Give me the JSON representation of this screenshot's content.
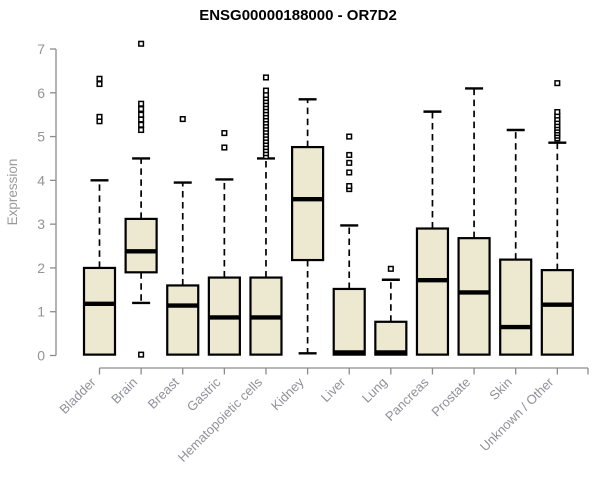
{
  "title": "ENSG00000188000 - OR7D2",
  "chart_data": {
    "type": "boxplot",
    "title": "ENSG00000188000 - OR7D2",
    "xlabel": "",
    "ylabel": "Expression",
    "ylim": [
      0,
      7
    ],
    "yticks": [
      0,
      1,
      2,
      3,
      4,
      5,
      6,
      7
    ],
    "grid": false,
    "legend": "none",
    "categories": [
      "Bladder",
      "Brain",
      "Breast",
      "Gastric",
      "Hematopoietic cells",
      "Kidney",
      "Liver",
      "Lung",
      "Pancreas",
      "Prostate",
      "Skin",
      "Unknown / Other"
    ],
    "boxes": [
      {
        "category": "Bladder",
        "whisker_low": null,
        "q1": 0.02,
        "median": 1.18,
        "q3": 2.0,
        "whisker_high": 4.0,
        "outliers": [
          5.35,
          5.45,
          6.2,
          6.32
        ]
      },
      {
        "category": "Brain",
        "whisker_low": 1.2,
        "q1": 1.9,
        "median": 2.38,
        "q3": 3.12,
        "whisker_high": 4.5,
        "outliers": [
          0.02,
          5.15,
          5.27,
          5.39,
          5.5,
          5.63,
          5.75,
          7.12
        ]
      },
      {
        "category": "Breast",
        "whisker_low": null,
        "q1": 0.02,
        "median": 1.14,
        "q3": 1.6,
        "whisker_high": 3.95,
        "outliers": [
          5.4
        ]
      },
      {
        "category": "Gastric",
        "whisker_low": null,
        "q1": 0.02,
        "median": 0.87,
        "q3": 1.78,
        "whisker_high": 4.02,
        "outliers": [
          4.75,
          5.08
        ]
      },
      {
        "category": "Hematopoietic cells",
        "whisker_low": null,
        "q1": 0.02,
        "median": 0.87,
        "q3": 1.78,
        "whisker_high": 4.5,
        "outliers": [
          4.55,
          4.62,
          4.69,
          4.76,
          4.83,
          4.9,
          4.97,
          5.04,
          5.11,
          5.18,
          5.25,
          5.32,
          5.39,
          5.46,
          5.53,
          5.6,
          5.67,
          5.74,
          5.81,
          5.88,
          5.95,
          6.05,
          6.35
        ]
      },
      {
        "category": "Kidney",
        "whisker_low": 0.05,
        "q1": 2.18,
        "median": 3.57,
        "q3": 4.76,
        "whisker_high": 5.85,
        "outliers": []
      },
      {
        "category": "Liver",
        "whisker_low": null,
        "q1": 0.02,
        "median": 0.07,
        "q3": 1.52,
        "whisker_high": 2.97,
        "outliers": [
          3.8,
          3.87,
          4.18,
          4.4,
          4.58,
          5.0
        ]
      },
      {
        "category": "Lung",
        "whisker_low": null,
        "q1": 0.02,
        "median": 0.07,
        "q3": 0.77,
        "whisker_high": 1.73,
        "outliers": [
          1.98
        ]
      },
      {
        "category": "Pancreas",
        "whisker_low": null,
        "q1": 0.02,
        "median": 1.72,
        "q3": 2.9,
        "whisker_high": 5.57,
        "outliers": []
      },
      {
        "category": "Prostate",
        "whisker_low": null,
        "q1": 0.02,
        "median": 1.44,
        "q3": 2.68,
        "whisker_high": 6.1,
        "outliers": []
      },
      {
        "category": "Skin",
        "whisker_low": null,
        "q1": 0.02,
        "median": 0.65,
        "q3": 2.19,
        "whisker_high": 5.15,
        "outliers": []
      },
      {
        "category": "Unknown / Other",
        "whisker_low": null,
        "q1": 0.02,
        "median": 1.16,
        "q3": 1.95,
        "whisker_high": 4.86,
        "outliers": [
          4.96,
          5.02,
          5.08,
          5.14,
          5.2,
          5.26,
          5.33,
          5.4,
          5.48,
          5.56,
          6.22
        ]
      }
    ],
    "style": {
      "box_fill": "#EDE8D0",
      "box_stroke": "#000000",
      "median_color": "#000000",
      "whisker_color": "#000000",
      "outlier_stroke": "#000000",
      "outlier_fill": "#FFFFFF",
      "axis_color": "#8C8C8C",
      "tick_label_color": "#949494",
      "category_label_color": "#90909A",
      "title_color": "#000000",
      "background": "#FFFFFF"
    }
  }
}
